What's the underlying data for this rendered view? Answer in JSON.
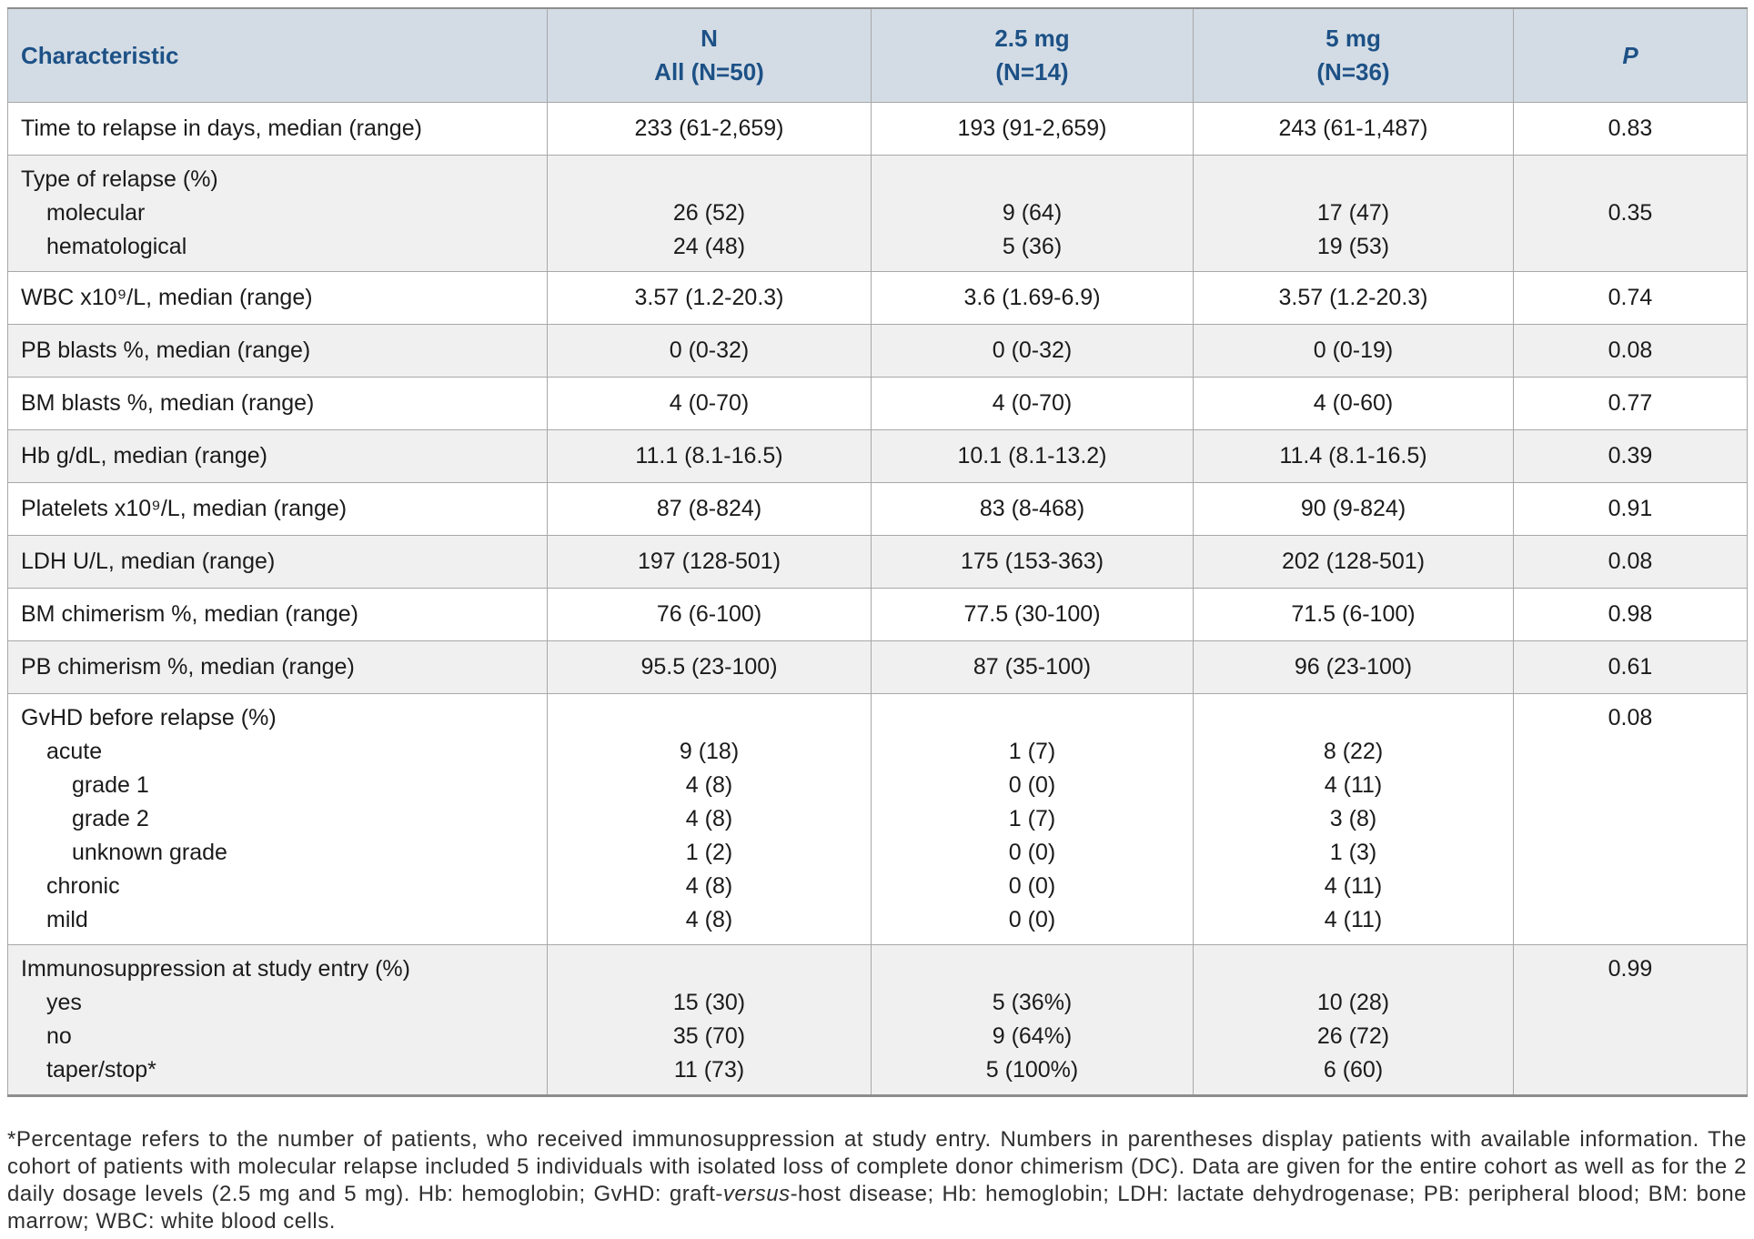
{
  "colors": {
    "header_bg": "#d3dce5",
    "header_text": "#1d5186",
    "row_shade": "#f0f0f0",
    "border": "#a8a8a8",
    "border_dark": "#8d8d8d",
    "body_text": "#1b1b1b",
    "footnote_text": "#2f2f2f"
  },
  "header": {
    "columns": [
      {
        "id": "characteristic",
        "lines": [
          "Characteristic"
        ],
        "italic": false
      },
      {
        "id": "all",
        "lines": [
          "N",
          "All (N=50)"
        ],
        "italic": false
      },
      {
        "id": "dose-2-5mg",
        "lines": [
          "2.5 mg",
          "(N=14)"
        ],
        "italic": false
      },
      {
        "id": "dose-5mg",
        "lines": [
          "5 mg",
          "(N=36)"
        ],
        "italic": false
      },
      {
        "id": "p-value",
        "lines": [
          "P"
        ],
        "italic": true
      }
    ]
  },
  "table": {
    "groups": [
      {
        "shade": "white",
        "lines": [
          {
            "label": "Time to relapse in days, median (range)",
            "indent": 0,
            "values": [
              "233 (61-2,659)",
              "193 (91-2,659)",
              "243 (61-1,487)"
            ],
            "p": "0.83"
          }
        ]
      },
      {
        "shade": "gray",
        "lines": [
          {
            "label": "Type of relapse (%)",
            "indent": 0
          },
          {
            "label": "molecular",
            "indent": 1,
            "values": [
              "26 (52)",
              "9 (64)",
              "17 (47)"
            ],
            "p": "0.35"
          },
          {
            "label": "hematological",
            "indent": 1,
            "values": [
              "24 (48)",
              "5 (36)",
              "19 (53)"
            ]
          }
        ]
      },
      {
        "shade": "white",
        "lines": [
          {
            "label": "WBC x10⁹/L, median (range)",
            "indent": 0,
            "values": [
              "3.57 (1.2-20.3)",
              "3.6 (1.69-6.9)",
              "3.57 (1.2-20.3)"
            ],
            "p": "0.74"
          }
        ]
      },
      {
        "shade": "gray",
        "lines": [
          {
            "label": "PB blasts %, median (range)",
            "indent": 0,
            "values": [
              "0 (0-32)",
              "0 (0-32)",
              "0 (0-19)"
            ],
            "p": "0.08"
          }
        ]
      },
      {
        "shade": "white",
        "lines": [
          {
            "label": "BM blasts %, median (range)",
            "indent": 0,
            "values": [
              "4 (0-70)",
              "4 (0-70)",
              "4 (0-60)"
            ],
            "p": "0.77"
          }
        ]
      },
      {
        "shade": "gray",
        "lines": [
          {
            "label": "Hb g/dL, median (range)",
            "indent": 0,
            "values": [
              "11.1 (8.1-16.5)",
              "10.1 (8.1-13.2)",
              "11.4 (8.1-16.5)"
            ],
            "p": "0.39"
          }
        ]
      },
      {
        "shade": "white",
        "lines": [
          {
            "label": "Platelets x10⁹/L, median (range)",
            "indent": 0,
            "values": [
              "87 (8-824)",
              "83 (8-468)",
              "90 (9-824)"
            ],
            "p": "0.91"
          }
        ]
      },
      {
        "shade": "gray",
        "lines": [
          {
            "label": "LDH U/L, median (range)",
            "indent": 0,
            "values": [
              "197 (128-501)",
              "175 (153-363)",
              "202 (128-501)"
            ],
            "p": "0.08"
          }
        ]
      },
      {
        "shade": "white",
        "lines": [
          {
            "label": "BM chimerism %, median (range)",
            "indent": 0,
            "values": [
              "76 (6-100)",
              "77.5 (30-100)",
              "71.5 (6-100)"
            ],
            "p": "0.98"
          }
        ]
      },
      {
        "shade": "gray",
        "lines": [
          {
            "label": "PB chimerism %, median (range)",
            "indent": 0,
            "values": [
              "95.5 (23-100)",
              "87 (35-100)",
              "96 (23-100)"
            ],
            "p": "0.61"
          }
        ]
      },
      {
        "shade": "white",
        "lines": [
          {
            "label": "GvHD before relapse (%)",
            "indent": 0,
            "p": "0.08"
          },
          {
            "label": "acute",
            "indent": 1,
            "values": [
              "9 (18)",
              "1 (7)",
              "8 (22)"
            ]
          },
          {
            "label": "grade 1",
            "indent": 2,
            "values": [
              "4 (8)",
              "0 (0)",
              "4 (11)"
            ]
          },
          {
            "label": "grade 2",
            "indent": 2,
            "values": [
              "4 (8)",
              "1 (7)",
              "3 (8)"
            ]
          },
          {
            "label": "unknown grade",
            "indent": 2,
            "values": [
              "1 (2)",
              "0 (0)",
              "1 (3)"
            ]
          },
          {
            "label": "chronic",
            "indent": 1,
            "values": [
              "4 (8)",
              "0 (0)",
              "4 (11)"
            ]
          },
          {
            "label": "mild",
            "indent": 1,
            "values": [
              "4 (8)",
              "0 (0)",
              "4 (11)"
            ]
          }
        ]
      },
      {
        "shade": "gray",
        "lines": [
          {
            "label": "Immunosuppression at study entry (%)",
            "indent": 0,
            "p": "0.99"
          },
          {
            "label": "yes",
            "indent": 1,
            "values": [
              "15 (30)",
              "5 (36%)",
              "10 (28)"
            ]
          },
          {
            "label": "no",
            "indent": 1,
            "values": [
              "35 (70)",
              "9 (64%)",
              "26 (72)"
            ]
          },
          {
            "label": "taper/stop*",
            "indent": 1,
            "values": [
              "11 (73)",
              "5 (100%)",
              "6 (60)"
            ]
          }
        ]
      }
    ]
  },
  "footnote": {
    "segments": [
      {
        "text": "*Percentage refers to the number of patients, who received immunosuppression at study entry. Numbers in parentheses display patients with available information. The cohort of patients with molecular relapse included 5 individuals with isolated loss of complete donor chimerism (DC). Data are given for the entire cohort as well as for the 2 daily dosage levels (2.5 mg and 5 mg). Hb: hemoglobin; GvHD: graft-",
        "italic": false
      },
      {
        "text": "versus",
        "italic": true
      },
      {
        "text": "-host disease; Hb: hemoglobin; LDH: lactate dehydrogenase; PB: peripheral blood; BM: bone marrow; WBC: white blood cells.",
        "italic": false
      }
    ]
  }
}
